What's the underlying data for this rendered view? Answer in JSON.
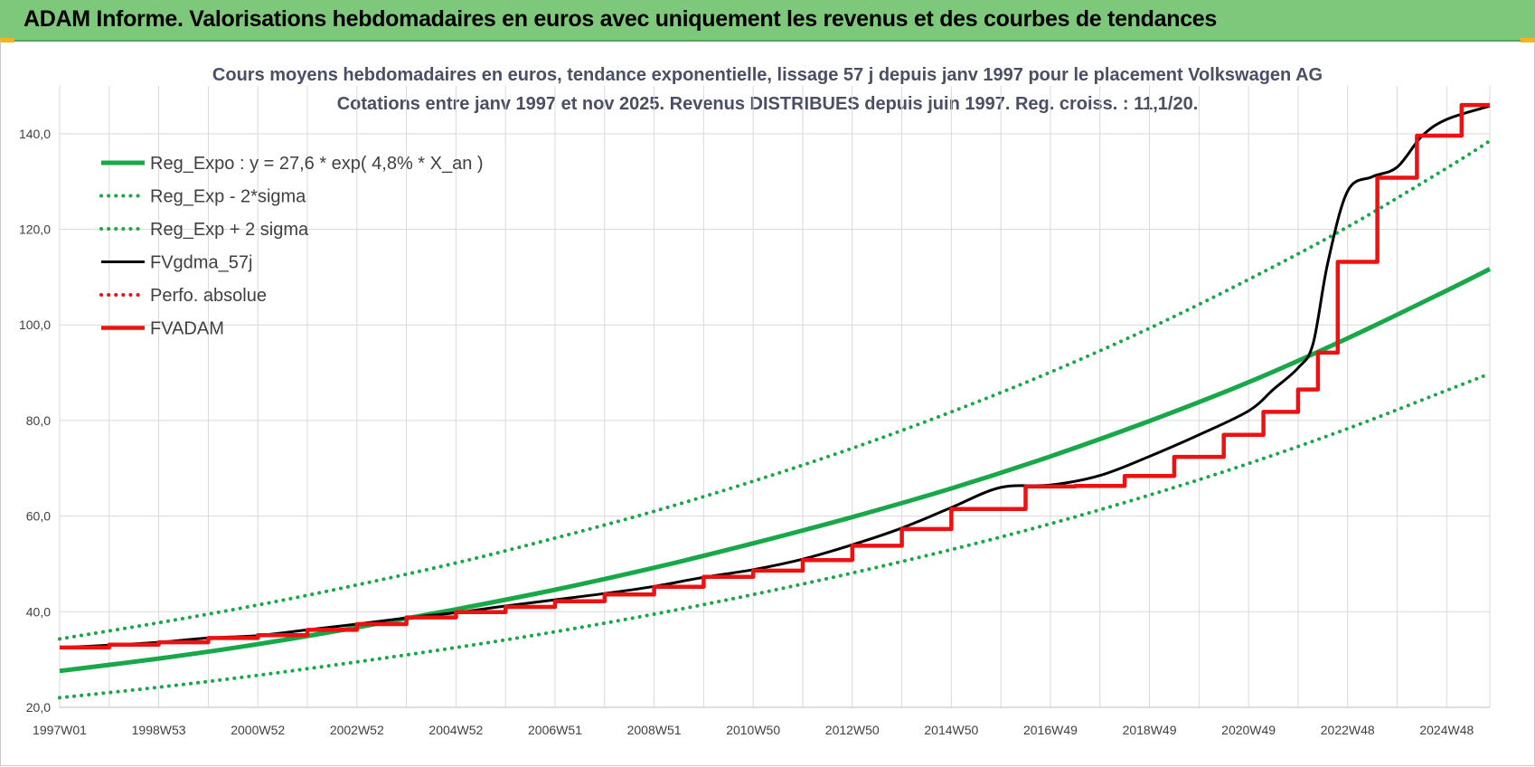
{
  "header": {
    "title": "ADAM Informe. Valorisations hebdomadaires en euros avec uniquement les revenus et des courbes de tendances"
  },
  "colors": {
    "banner": "#7dc87a",
    "green": "#19a849",
    "red": "#ee1111",
    "black": "#000000",
    "grid": "#d9d9d9"
  },
  "chart_data": {
    "type": "line",
    "title": "Cours moyens hebdomadaires en euros, tendance exponentielle, lissage 57 j depuis janv 1997 pour le placement Volkswagen AG",
    "subtitle": "Cotations entre janv 1997 et nov 2025. Revenus DISTRIBUES depuis juin 1997. Reg. croiss. : 11,1/20.",
    "x_range": [
      1997.0,
      2025.87
    ],
    "ylim": [
      20,
      150
    ],
    "grid": true,
    "legend_position": "top-left",
    "y_ticks": [
      "20,0",
      "40,0",
      "60,0",
      "80,0",
      "100,0",
      "120,0",
      "140,0"
    ],
    "y_tick_values": [
      20,
      40,
      60,
      80,
      100,
      120,
      140
    ],
    "x_ticks": [
      "1997W01",
      "1998W53",
      "2000W52",
      "2002W52",
      "2004W52",
      "2006W51",
      "2008W51",
      "2010W50",
      "2012W50",
      "2014W50",
      "2016W49",
      "2018W49",
      "2020W49",
      "2022W48",
      "2024W48"
    ],
    "x_tick_values": [
      1997.0,
      1999.0,
      2001.0,
      2003.0,
      2005.0,
      2007.0,
      2009.0,
      2011.0,
      2013.0,
      2015.0,
      2017.0,
      2019.0,
      2021.0,
      2023.0,
      2025.0
    ],
    "series": [
      {
        "name": "Reg_Expo : y = 27,6 * exp( 4,8% *  X_an )",
        "style": "solid-thick",
        "color": "#19a849",
        "x": [
          1997.0,
          1999.0,
          2001.0,
          2003.0,
          2005.0,
          2007.0,
          2009.0,
          2011.0,
          2013.0,
          2015.0,
          2017.0,
          2019.0,
          2021.0,
          2023.0,
          2025.0,
          2025.87
        ],
        "y": [
          27.6,
          30.2,
          33.2,
          36.7,
          40.5,
          44.6,
          49.2,
          54.3,
          59.8,
          65.8,
          72.5,
          79.9,
          88.0,
          97.2,
          107.2,
          111.7
        ]
      },
      {
        "name": "Reg_Exp - 2*sigma",
        "style": "dotted",
        "color": "#19a849",
        "x": [
          1997.0,
          1999.0,
          2001.0,
          2003.0,
          2005.0,
          2007.0,
          2009.0,
          2011.0,
          2013.0,
          2015.0,
          2017.0,
          2019.0,
          2021.0,
          2023.0,
          2025.0,
          2025.87
        ],
        "y": [
          22.0,
          24.2,
          26.7,
          29.5,
          32.5,
          35.8,
          39.5,
          43.6,
          48.1,
          53.0,
          58.4,
          64.4,
          71.0,
          78.3,
          86.3,
          89.8
        ]
      },
      {
        "name": "Reg_Exp + 2 sigma",
        "style": "dotted",
        "color": "#19a849",
        "x": [
          1997.0,
          1999.0,
          2001.0,
          2003.0,
          2005.0,
          2007.0,
          2009.0,
          2011.0,
          2013.0,
          2015.0,
          2017.0,
          2019.0,
          2021.0,
          2023.0,
          2025.0,
          2025.87
        ],
        "y": [
          34.3,
          37.7,
          41.4,
          45.6,
          50.2,
          55.4,
          61.0,
          67.3,
          74.2,
          81.8,
          90.1,
          99.3,
          109.5,
          120.5,
          132.8,
          138.5
        ]
      },
      {
        "name": "FVgdma_57j",
        "style": "solid",
        "color": "#000000",
        "x": [
          1997.0,
          1998.0,
          1999.0,
          2000.0,
          2001.0,
          2002.0,
          2003.0,
          2004.0,
          2005.0,
          2006.0,
          2007.0,
          2008.0,
          2009.0,
          2010.0,
          2011.0,
          2012.0,
          2013.0,
          2014.0,
          2015.0,
          2016.0,
          2017.0,
          2018.0,
          2019.0,
          2020.0,
          2021.0,
          2021.5,
          2022.0,
          2022.3,
          2022.6,
          2023.0,
          2023.5,
          2024.0,
          2024.5,
          2025.0,
          2025.87
        ],
        "y": [
          32.5,
          33.0,
          33.6,
          34.5,
          35.0,
          36.2,
          37.4,
          38.7,
          39.8,
          41.2,
          42.5,
          43.8,
          45.3,
          47.2,
          48.8,
          51.0,
          54.0,
          57.5,
          61.8,
          66.0,
          66.5,
          68.5,
          72.5,
          77.0,
          82.0,
          86.5,
          91.0,
          96.0,
          113.0,
          128.0,
          131.0,
          133.0,
          139.5,
          143.0,
          145.8
        ]
      },
      {
        "name": "Perfo. absolue",
        "style": "dotted",
        "color": "#ee1111",
        "x": [],
        "y": []
      },
      {
        "name": "FVADAM",
        "style": "step-thick",
        "color": "#ee1111",
        "x": [
          1997.0,
          1998.0,
          1999.0,
          2000.0,
          2001.0,
          2002.0,
          2003.0,
          2004.0,
          2005.0,
          2006.0,
          2007.0,
          2008.0,
          2009.0,
          2010.0,
          2011.0,
          2012.0,
          2013.0,
          2014.0,
          2015.0,
          2016.5,
          2017.5,
          2018.5,
          2019.5,
          2020.5,
          2021.3,
          2022.0,
          2022.4,
          2022.8,
          2023.6,
          2024.4,
          2025.3,
          2025.87
        ],
        "y": [
          32.5,
          33.1,
          33.6,
          34.5,
          35.1,
          36.2,
          37.4,
          38.8,
          39.9,
          41.0,
          42.2,
          43.6,
          45.2,
          47.3,
          48.6,
          50.8,
          53.8,
          57.3,
          61.5,
          66.2,
          66.3,
          68.4,
          72.4,
          77.0,
          81.8,
          86.5,
          94.2,
          113.2,
          130.8,
          139.6,
          146.0,
          146.0
        ]
      }
    ]
  }
}
